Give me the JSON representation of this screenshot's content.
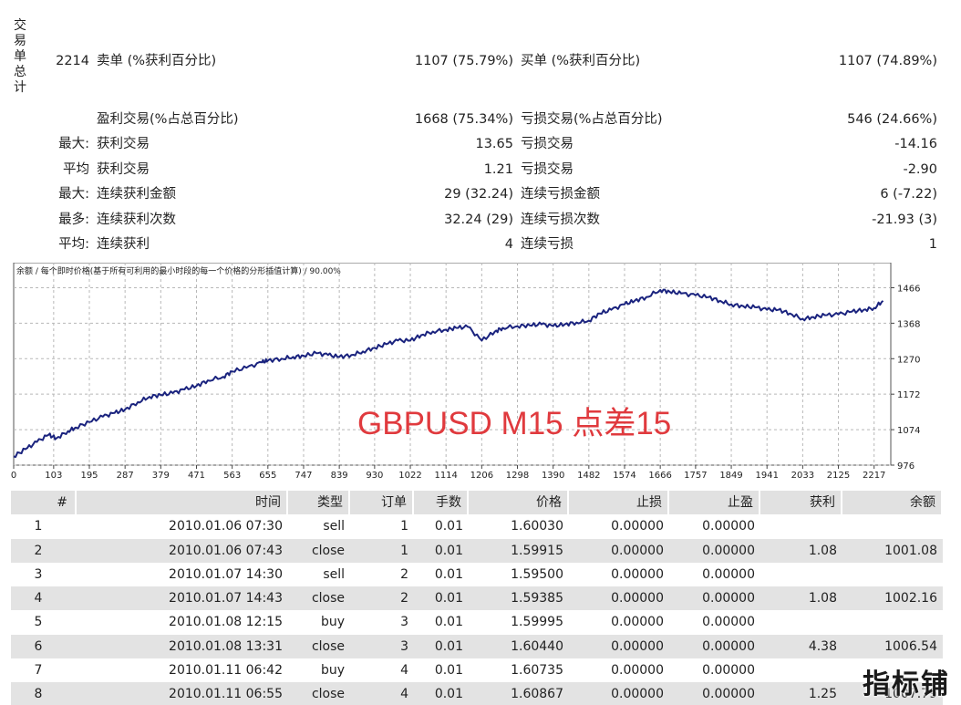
{
  "side_label": [
    "交",
    "易",
    "单",
    "总",
    "计"
  ],
  "summary": [
    {
      "pre": "2214",
      "label1": "卖单 (%获利百分比)",
      "value1": "1107 (75.79%)",
      "label2": "买单 (%获利百分比)",
      "value2": "1107 (74.89%)"
    },
    {
      "pre": "",
      "label1": "盈利交易(%占总百分比)",
      "value1": "1668 (75.34%)",
      "label2": "亏损交易(%占总百分比)",
      "value2": "546 (24.66%)"
    },
    {
      "pre": "最大:",
      "label1": "获利交易",
      "value1": "13.65",
      "label2": "亏损交易",
      "value2": "-14.16"
    },
    {
      "pre": "平均",
      "label1": "获利交易",
      "value1": "1.21",
      "label2": "亏损交易",
      "value2": "-2.90"
    },
    {
      "pre": "最大:",
      "label1": "连续获利金额",
      "value1": "29 (32.24)",
      "label2": "连续亏损金额",
      "value2": "6 (-7.22)"
    },
    {
      "pre": "最多:",
      "label1": "连续获利次数",
      "value1": "32.24 (29)",
      "label2": "连续亏损次数",
      "value2": "-21.93 (3)"
    },
    {
      "pre": "平均:",
      "label1": "连续获利",
      "value1": "4",
      "label2": "连续亏损",
      "value2": "1"
    }
  ],
  "chart_data": {
    "type": "line",
    "title": "余额 / 每个即时价格(基于所有可利用的最小时段的每一个价格的分形插值计算) / 90.00%",
    "annotation": "GBPUSD M15 点差15",
    "line_color": "#1a237e",
    "annotation_color": "#e03a3e",
    "xlim": [
      0,
      2260
    ],
    "ylim": [
      976,
      1510
    ],
    "x_ticks": [
      "0",
      "103",
      "195",
      "287",
      "379",
      "471",
      "563",
      "655",
      "747",
      "839",
      "930",
      "1022",
      "1114",
      "1206",
      "1298",
      "1390",
      "1482",
      "1574",
      "1666",
      "1757",
      "1849",
      "1941",
      "2033",
      "2125",
      "2217"
    ],
    "y_ticks": [
      "1466",
      "1368",
      "1270",
      "1172",
      "1074",
      "976"
    ],
    "grid": true,
    "series": [
      {
        "x": [
          0,
          30,
          60,
          90,
          110,
          140,
          160,
          195,
          230,
          260,
          287,
          320,
          350,
          379,
          410,
          440,
          471,
          500,
          540,
          563,
          600,
          640,
          655,
          690,
          720,
          747,
          780,
          810,
          839,
          870,
          900,
          930,
          960,
          990,
          1022,
          1050,
          1080,
          1114,
          1140,
          1170,
          1206,
          1240,
          1260,
          1298,
          1330,
          1360,
          1390,
          1420,
          1450,
          1482,
          1510,
          1540,
          1574,
          1600,
          1630,
          1666,
          1690,
          1720,
          1757,
          1790,
          1820,
          1849,
          1880,
          1910,
          1941,
          1970,
          2000,
          2033,
          2060,
          2090,
          2125,
          2160,
          2190,
          2217,
          2240
        ],
        "y": [
          1000,
          1020,
          1040,
          1060,
          1050,
          1070,
          1080,
          1095,
          1110,
          1120,
          1130,
          1150,
          1165,
          1170,
          1175,
          1185,
          1195,
          1210,
          1220,
          1235,
          1245,
          1260,
          1265,
          1270,
          1275,
          1278,
          1285,
          1280,
          1275,
          1280,
          1290,
          1300,
          1310,
          1320,
          1320,
          1335,
          1345,
          1350,
          1355,
          1358,
          1320,
          1345,
          1355,
          1360,
          1362,
          1365,
          1360,
          1365,
          1370,
          1375,
          1395,
          1405,
          1420,
          1430,
          1440,
          1460,
          1455,
          1450,
          1445,
          1440,
          1430,
          1420,
          1415,
          1412,
          1405,
          1405,
          1395,
          1380,
          1385,
          1390,
          1392,
          1400,
          1405,
          1410,
          1430
        ]
      }
    ]
  },
  "table": {
    "headers": {
      "no": "#",
      "time": "时间",
      "type": "类型",
      "order": "订单",
      "lots": "手数",
      "price": "价格",
      "sl": "止损",
      "tp": "止盈",
      "profit": "获利",
      "balance": "余额"
    },
    "rows": [
      {
        "no": "1",
        "time": "2010.01.06 07:30",
        "type": "sell",
        "order": "1",
        "lots": "0.01",
        "price": "1.60030",
        "sl": "0.00000",
        "tp": "0.00000",
        "profit": "",
        "balance": ""
      },
      {
        "no": "2",
        "time": "2010.01.06 07:43",
        "type": "close",
        "order": "1",
        "lots": "0.01",
        "price": "1.59915",
        "sl": "0.00000",
        "tp": "0.00000",
        "profit": "1.08",
        "balance": "1001.08"
      },
      {
        "no": "3",
        "time": "2010.01.07 14:30",
        "type": "sell",
        "order": "2",
        "lots": "0.01",
        "price": "1.59500",
        "sl": "0.00000",
        "tp": "0.00000",
        "profit": "",
        "balance": ""
      },
      {
        "no": "4",
        "time": "2010.01.07 14:43",
        "type": "close",
        "order": "2",
        "lots": "0.01",
        "price": "1.59385",
        "sl": "0.00000",
        "tp": "0.00000",
        "profit": "1.08",
        "balance": "1002.16"
      },
      {
        "no": "5",
        "time": "2010.01.08 12:15",
        "type": "buy",
        "order": "3",
        "lots": "0.01",
        "price": "1.59995",
        "sl": "0.00000",
        "tp": "0.00000",
        "profit": "",
        "balance": ""
      },
      {
        "no": "6",
        "time": "2010.01.08 13:31",
        "type": "close",
        "order": "3",
        "lots": "0.01",
        "price": "1.60440",
        "sl": "0.00000",
        "tp": "0.00000",
        "profit": "4.38",
        "balance": "1006.54"
      },
      {
        "no": "7",
        "time": "2010.01.11 06:42",
        "type": "buy",
        "order": "4",
        "lots": "0.01",
        "price": "1.60735",
        "sl": "0.00000",
        "tp": "0.00000",
        "profit": "",
        "balance": ""
      },
      {
        "no": "8",
        "time": "2010.01.11 06:55",
        "type": "close",
        "order": "4",
        "lots": "0.01",
        "price": "1.60867",
        "sl": "0.00000",
        "tp": "0.00000",
        "profit": "1.25",
        "balance": "1007.79"
      }
    ]
  },
  "brand": "指标铺"
}
